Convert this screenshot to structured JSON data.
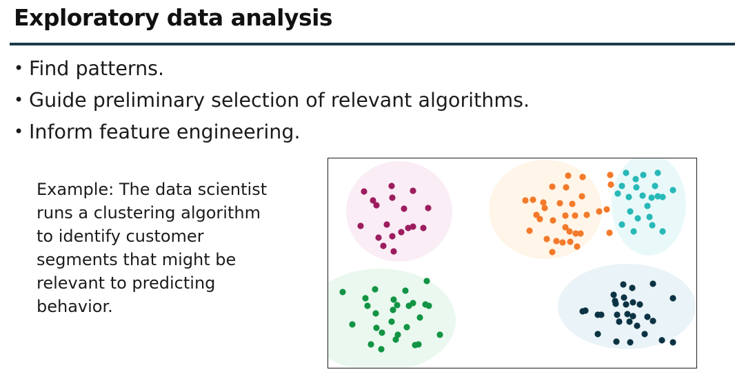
{
  "slide": {
    "title": "Exploratory data analysis",
    "bullets": [
      {
        "text": "Find patterns."
      },
      {
        "text": "Guide preliminary selection of relevant algorithms."
      },
      {
        "text": "Inform feature engineering."
      }
    ],
    "example_lines": [
      "Example: The data scientist",
      "runs a clustering algorithm",
      "to identify customer",
      "segments that might be",
      "relevant to predicting",
      "behavior."
    ]
  },
  "diagram": {
    "clusters": [
      {
        "color": "#9c1d5e",
        "halo": "#f9eaf4"
      },
      {
        "color": "#f37a2a",
        "halo": "#fff3e4"
      },
      {
        "color": "#28b8b8",
        "halo": "#e5f8f8"
      },
      {
        "color": "#129444",
        "halo": "#e6f7ec"
      },
      {
        "color": "#0b3344",
        "halo": "#e6f1f6"
      }
    ]
  }
}
